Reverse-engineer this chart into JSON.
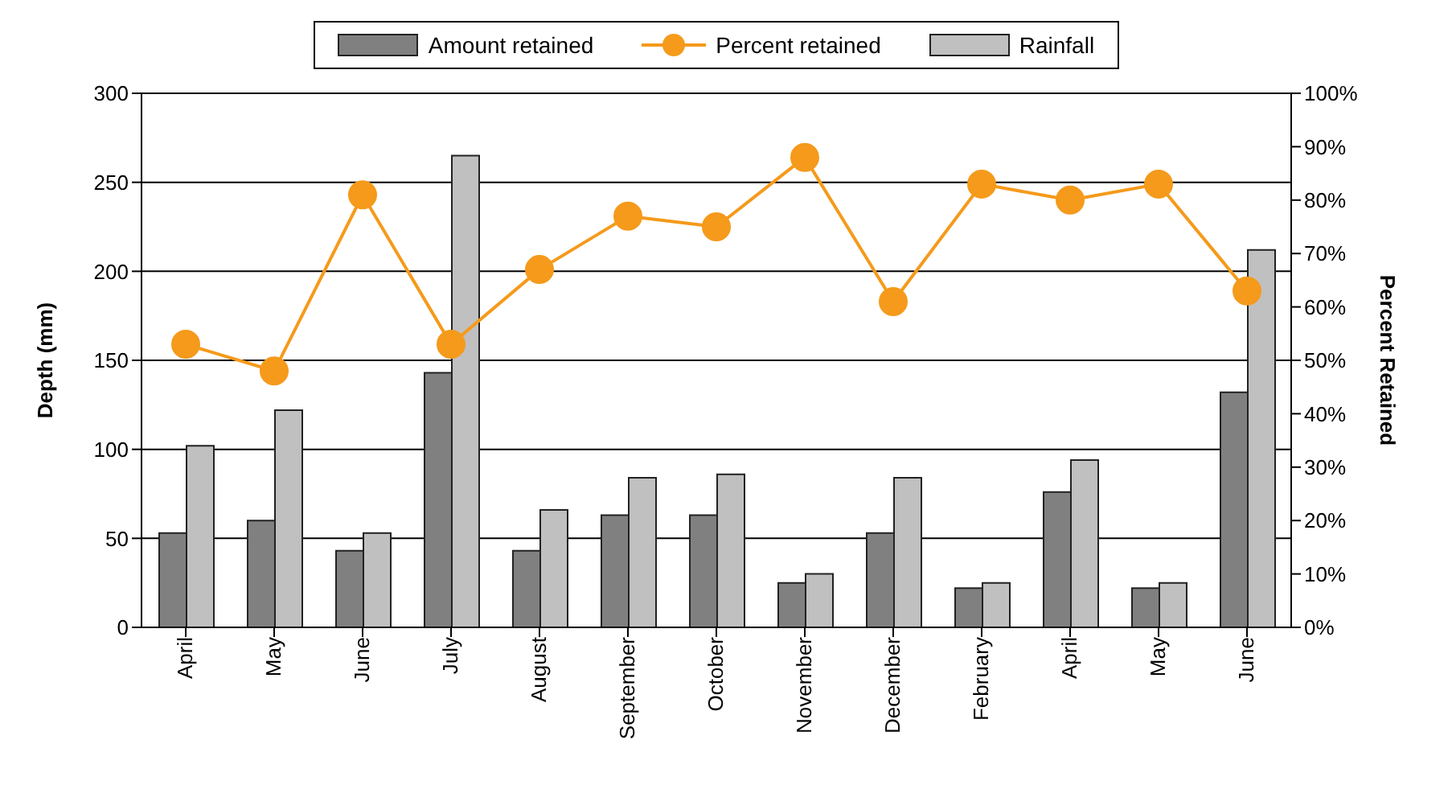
{
  "chart_data": {
    "type": "bar",
    "ylabel": "Depth (mm)",
    "y2label": "Percent Retained",
    "categories": [
      "April",
      "May",
      "June",
      "July",
      "August",
      "September",
      "October",
      "November",
      "December",
      "February",
      "April",
      "May",
      "June"
    ],
    "series": [
      {
        "name": "Amount retained",
        "color": "#808080",
        "values": [
          53,
          60,
          43,
          143,
          43,
          63,
          63,
          25,
          53,
          22,
          76,
          22,
          132
        ]
      },
      {
        "name": "Rainfall",
        "color": "#c0c0c0",
        "values": [
          102,
          122,
          53,
          265,
          66,
          84,
          86,
          30,
          84,
          25,
          94,
          25,
          212
        ]
      },
      {
        "name": "Percent retained",
        "type": "line",
        "axis": "y2",
        "color": "#f59a1b",
        "marker": "circle",
        "values": [
          53,
          48,
          81,
          53,
          67,
          77,
          75,
          88,
          61,
          83,
          80,
          83,
          63
        ]
      }
    ],
    "ylim": [
      0,
      300
    ],
    "yticks": [
      0,
      50,
      100,
      150,
      200,
      250,
      300
    ],
    "y2lim": [
      0,
      100
    ],
    "y2ticks": [
      {
        "value": 0,
        "label": "0%"
      },
      {
        "value": 10,
        "label": "10%"
      },
      {
        "value": 20,
        "label": "20%"
      },
      {
        "value": 30,
        "label": "30%"
      },
      {
        "value": 40,
        "label": "40%"
      },
      {
        "value": 50,
        "label": "50%"
      },
      {
        "value": 60,
        "label": "60%"
      },
      {
        "value": 70,
        "label": "70%"
      },
      {
        "value": 80,
        "label": "80%"
      },
      {
        "value": 90,
        "label": "90%"
      },
      {
        "value": 100,
        "label": "100%"
      }
    ],
    "grid": "y",
    "legend": "top"
  }
}
